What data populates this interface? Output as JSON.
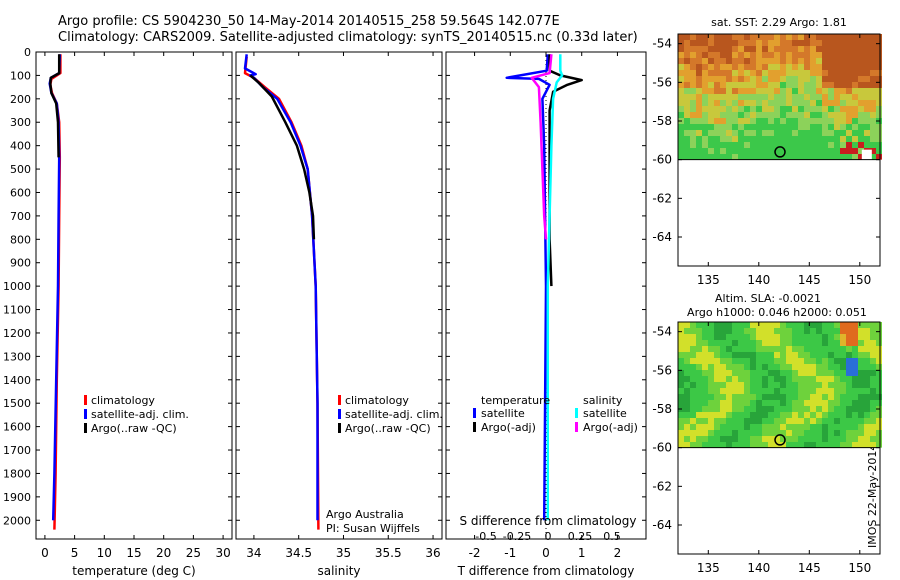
{
  "header": {
    "line1": "Argo profile: CS 5904230_50 14-May-2014 20140515_258 59.564S 142.077E",
    "line2": "Climatology: CARS2009. Satellite-adjusted climatology: synTS_20140515.nc (0.33d later)"
  },
  "colors": {
    "climatology": "#ff0000",
    "satellite": "#0000ff",
    "argo": "#000000",
    "sal_satellite": "#00ffff",
    "sal_argo": "#ff00ff"
  },
  "chart_data": [
    {
      "type": "line",
      "id": "temperature",
      "xlabel": "temperature (deg C)",
      "xlim": [
        -1.5,
        31.5
      ],
      "ylim": [
        0,
        2080
      ],
      "y_reversed": true,
      "x_ticks": [
        0,
        5,
        10,
        15,
        20,
        25,
        30
      ],
      "y_ticks": [
        0,
        100,
        200,
        300,
        400,
        500,
        600,
        700,
        800,
        900,
        1000,
        1100,
        1200,
        1300,
        1400,
        1500,
        1600,
        1700,
        1800,
        1900,
        2000
      ],
      "legend": [
        "climatology",
        "satellite-adj. clim.",
        "Argo(..raw -QC)"
      ],
      "legend_placement": "lower-right",
      "series": [
        {
          "name": "climatology",
          "color": "#ff0000",
          "points": [
            [
              2.6,
              10
            ],
            [
              2.6,
              90
            ],
            [
              1.1,
              115
            ],
            [
              0.9,
              140
            ],
            [
              1.2,
              175
            ],
            [
              2.0,
              220
            ],
            [
              2.4,
              300
            ],
            [
              2.5,
              450
            ],
            [
              2.4,
              700
            ],
            [
              2.3,
              1000
            ],
            [
              2.0,
              1400
            ],
            [
              1.8,
              1800
            ],
            [
              1.6,
              2040
            ]
          ]
        },
        {
          "name": "satellite-adj. clim.",
          "color": "#0000ff",
          "points": [
            [
              2.5,
              10
            ],
            [
              2.4,
              90
            ],
            [
              1.0,
              110
            ],
            [
              0.8,
              135
            ],
            [
              1.1,
              175
            ],
            [
              2.0,
              220
            ],
            [
              2.3,
              300
            ],
            [
              2.4,
              450
            ],
            [
              2.3,
              700
            ],
            [
              2.2,
              1000
            ],
            [
              1.9,
              1400
            ],
            [
              1.6,
              1800
            ],
            [
              1.4,
              2000
            ]
          ]
        },
        {
          "name": "Argo(..raw -QC)",
          "color": "#000000",
          "points": [
            [
              2.4,
              10
            ],
            [
              2.4,
              90
            ],
            [
              1.0,
              110
            ],
            [
              0.9,
              135
            ],
            [
              1.1,
              175
            ],
            [
              1.9,
              220
            ],
            [
              2.2,
              300
            ],
            [
              2.3,
              450
            ]
          ]
        }
      ]
    },
    {
      "type": "line",
      "id": "salinity",
      "xlabel": "salinity",
      "xlim": [
        33.8,
        36.1
      ],
      "ylim": [
        0,
        2080
      ],
      "y_reversed": true,
      "x_ticks": [
        34,
        34.5,
        35,
        35.5,
        36
      ],
      "legend": [
        "climatology",
        "satellite-adj. clim.",
        "Argo(..raw -QC)"
      ],
      "legend_placement": "lower-right",
      "annotation": [
        "Argo Australia",
        "PI: Susan Wijffels"
      ],
      "series": [
        {
          "name": "climatology",
          "color": "#ff0000",
          "points": [
            [
              33.92,
              20
            ],
            [
              33.9,
              90
            ],
            [
              34.0,
              110
            ],
            [
              34.12,
              150
            ],
            [
              34.28,
              200
            ],
            [
              34.42,
              300
            ],
            [
              34.53,
              400
            ],
            [
              34.6,
              500
            ],
            [
              34.65,
              700
            ],
            [
              34.69,
              1000
            ],
            [
              34.71,
              1500
            ],
            [
              34.72,
              2040
            ]
          ]
        },
        {
          "name": "satellite-adj. clim.",
          "color": "#0000ff",
          "points": [
            [
              33.92,
              10
            ],
            [
              33.9,
              70
            ],
            [
              34.02,
              95
            ],
            [
              33.96,
              100
            ],
            [
              34.0,
              110
            ],
            [
              34.1,
              150
            ],
            [
              34.26,
              200
            ],
            [
              34.41,
              300
            ],
            [
              34.52,
              400
            ],
            [
              34.6,
              500
            ],
            [
              34.65,
              700
            ],
            [
              34.69,
              1000
            ],
            [
              34.71,
              1500
            ],
            [
              34.71,
              2000
            ]
          ]
        },
        {
          "name": "Argo(..raw -QC)",
          "color": "#000000",
          "points": [
            [
              33.96,
              100
            ],
            [
              34.05,
              130
            ],
            [
              34.2,
              190
            ],
            [
              34.35,
              300
            ],
            [
              34.48,
              400
            ],
            [
              34.56,
              500
            ],
            [
              34.62,
              600
            ],
            [
              34.66,
              700
            ],
            [
              34.67,
              800
            ]
          ]
        }
      ]
    },
    {
      "type": "line",
      "id": "differences",
      "xlabel": "T difference from climatology",
      "top_xlabel": "S difference from climatology",
      "xlim": [
        -2.8,
        2.8
      ],
      "ylim": [
        0,
        2080
      ],
      "y_reversed": true,
      "x_ticks": [
        -2,
        -1,
        0,
        1,
        2
      ],
      "top_ticks": [
        "-0.5",
        "-0.25",
        "0",
        "0.25",
        "0.5"
      ],
      "legend_headers": [
        "temperature",
        "salinity"
      ],
      "legend_temperature": [
        "satellite",
        "Argo(-adj)"
      ],
      "legend_salinity": [
        "satellite",
        "Argo(-adj)"
      ],
      "series": [
        {
          "name": "T satellite",
          "color": "#0000ff",
          "points": [
            [
              0.05,
              10
            ],
            [
              0.02,
              80
            ],
            [
              -1.1,
              110
            ],
            [
              -0.2,
              115
            ],
            [
              0.1,
              140
            ],
            [
              -0.1,
              200
            ],
            [
              -0.05,
              400
            ],
            [
              0,
              1000
            ],
            [
              -0.05,
              2000
            ]
          ]
        },
        {
          "name": "T Argo(-adj)",
          "color": "#000000",
          "points": [
            [
              0.1,
              10
            ],
            [
              0.1,
              80
            ],
            [
              0.4,
              100
            ],
            [
              1.0,
              120
            ],
            [
              0.6,
              140
            ],
            [
              0.2,
              170
            ],
            [
              0.1,
              250
            ],
            [
              0.1,
              500
            ],
            [
              0.1,
              800
            ],
            [
              0.15,
              1000
            ]
          ]
        },
        {
          "name": "S satellite",
          "color": "#00ffff",
          "points": [
            [
              0.4,
              10
            ],
            [
              0.4,
              80
            ],
            [
              0.45,
              100
            ],
            [
              0.3,
              130
            ],
            [
              0.2,
              200
            ],
            [
              0.15,
              400
            ],
            [
              0.1,
              700
            ],
            [
              0.05,
              1000
            ],
            [
              0.05,
              1500
            ],
            [
              0.05,
              2000
            ]
          ]
        },
        {
          "name": "S Argo(-adj)",
          "color": "#ff00ff",
          "points": [
            [
              0.15,
              10
            ],
            [
              0.1,
              90
            ],
            [
              -0.4,
              110
            ],
            [
              -0.2,
              150
            ],
            [
              -0.15,
              300
            ],
            [
              -0.1,
              500
            ],
            [
              -0.05,
              700
            ],
            [
              0,
              800
            ]
          ]
        }
      ]
    },
    {
      "type": "heatmap",
      "id": "sst-map",
      "title": "sat. SST: 2.29 Argo: 1.81",
      "xlim": [
        132,
        152
      ],
      "ylim": [
        -65.5,
        -53.5
      ],
      "x_ticks": [
        135,
        140,
        145,
        150
      ],
      "y_ticks": [
        -54,
        -56,
        -58,
        -60,
        -62,
        -64
      ],
      "marker": [
        142.1,
        -59.6
      ],
      "data_limit_lat": -60
    },
    {
      "type": "heatmap",
      "id": "sla-map",
      "title": "Altim. SLA: -0.0021",
      "subtitle": "Argo h1000: 0.046 h2000: 0.051",
      "xlim": [
        132,
        152
      ],
      "ylim": [
        -65.5,
        -53.5
      ],
      "x_ticks": [
        135,
        140,
        145,
        150
      ],
      "y_ticks": [
        -54,
        -56,
        -58,
        -60,
        -62,
        -64
      ],
      "marker": [
        142.1,
        -59.6
      ],
      "data_limit_lat": -60
    }
  ],
  "side_label": "IMOS 22-May-2014 20:01:03"
}
